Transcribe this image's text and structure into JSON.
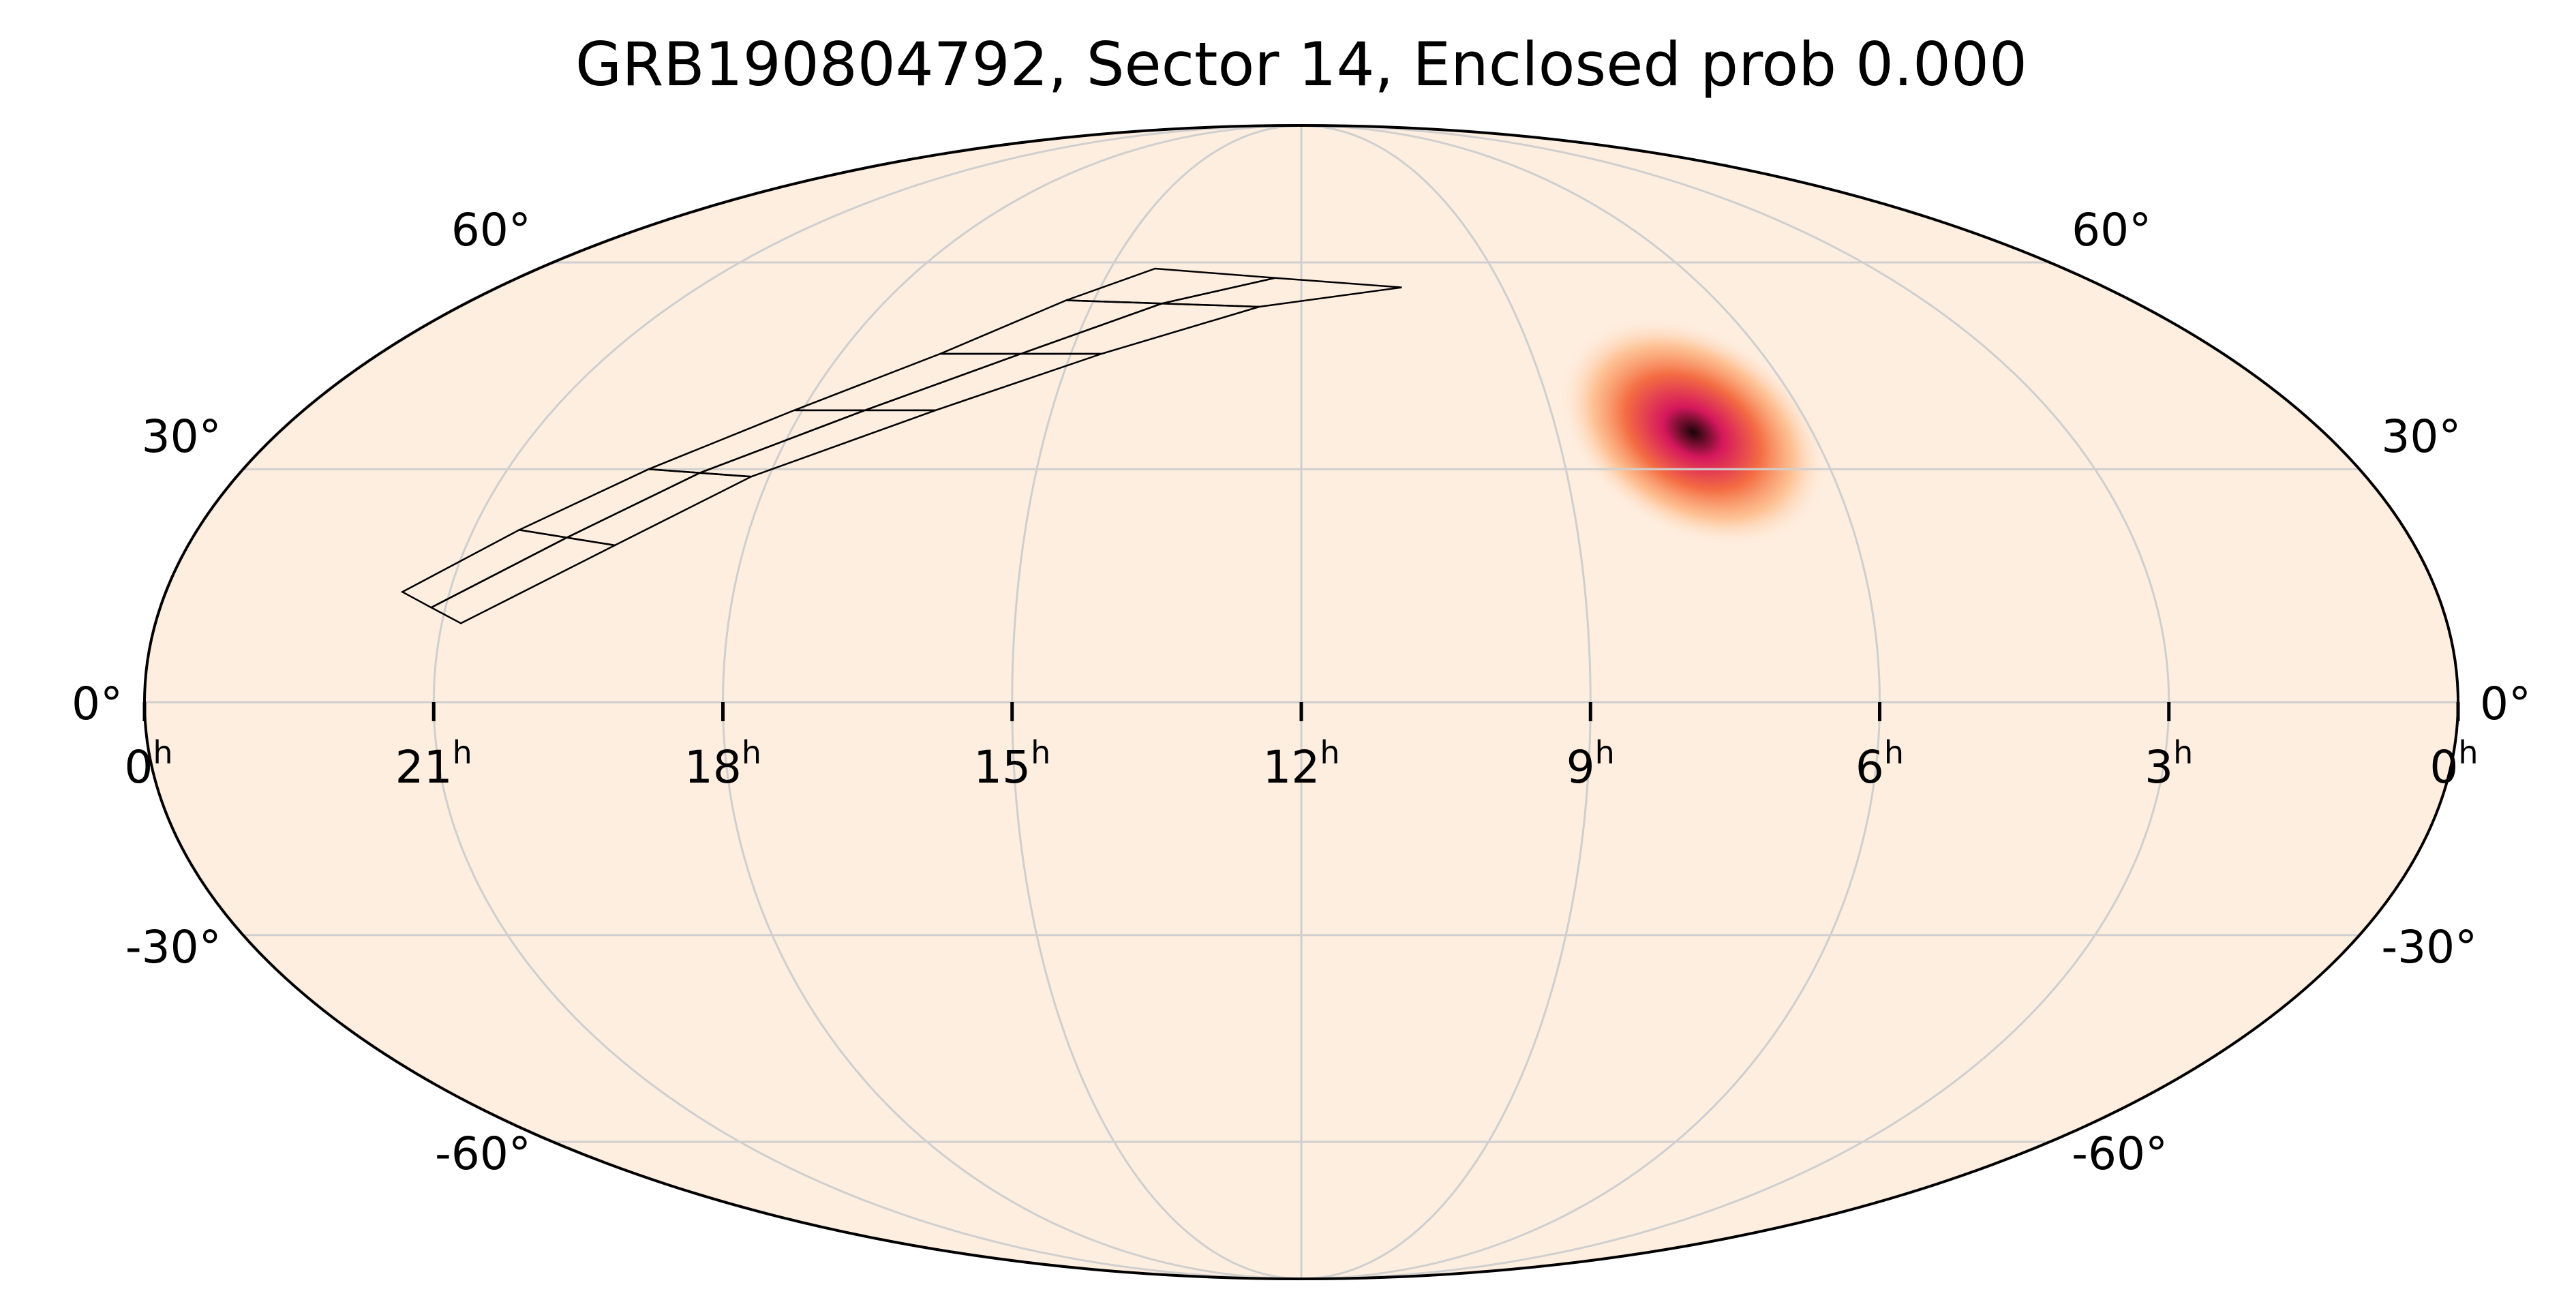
{
  "chart_data": {
    "type": "heatmap",
    "projection": "mollweide",
    "title": "GRB190804792, Sector 14, Enclosed prob 0.000",
    "grid": true,
    "ra_ticks": [
      {
        "ra_hours": 24,
        "label": "0",
        "sup": "h"
      },
      {
        "ra_hours": 21,
        "label": "21",
        "sup": "h"
      },
      {
        "ra_hours": 18,
        "label": "18",
        "sup": "h"
      },
      {
        "ra_hours": 15,
        "label": "15",
        "sup": "h"
      },
      {
        "ra_hours": 12,
        "label": "12",
        "sup": "h"
      },
      {
        "ra_hours": 9,
        "label": "9",
        "sup": "h"
      },
      {
        "ra_hours": 6,
        "label": "6",
        "sup": "h"
      },
      {
        "ra_hours": 3,
        "label": "3",
        "sup": "h"
      },
      {
        "ra_hours": 0,
        "label": "0",
        "sup": "h"
      }
    ],
    "dec_ticks": [
      {
        "dec": 60,
        "label": "60°"
      },
      {
        "dec": 30,
        "label": "30°"
      },
      {
        "dec": 0,
        "label": "0°"
      },
      {
        "dec": -30,
        "label": "-30°"
      },
      {
        "dec": -60,
        "label": "-60°"
      }
    ],
    "probability_peak": {
      "ra_hours": 7.4,
      "dec": 35
    },
    "sector_camera_rows": [
      {
        "ra_hours": [
          21.5,
          20.5,
          19.4,
          18.1,
          16.7,
          15.4,
          14.3
        ],
        "dec": [
          14,
          22,
          30,
          38,
          46,
          54,
          59
        ]
      },
      {
        "ra_hours": [
          20.8,
          19.4,
          18.2,
          16.4,
          14.6,
          12.6,
          10.5
        ],
        "dec": [
          10,
          20,
          29,
          38,
          46,
          53,
          56
        ]
      }
    ],
    "colors": {
      "background": "#feeee0",
      "grid": "#cfcfcf",
      "outline": "#000000",
      "prob_low": "#fdb27a",
      "prob_mid": "#f46d43",
      "prob_high": "#d6185c",
      "prob_peak": "#1a0406"
    }
  }
}
